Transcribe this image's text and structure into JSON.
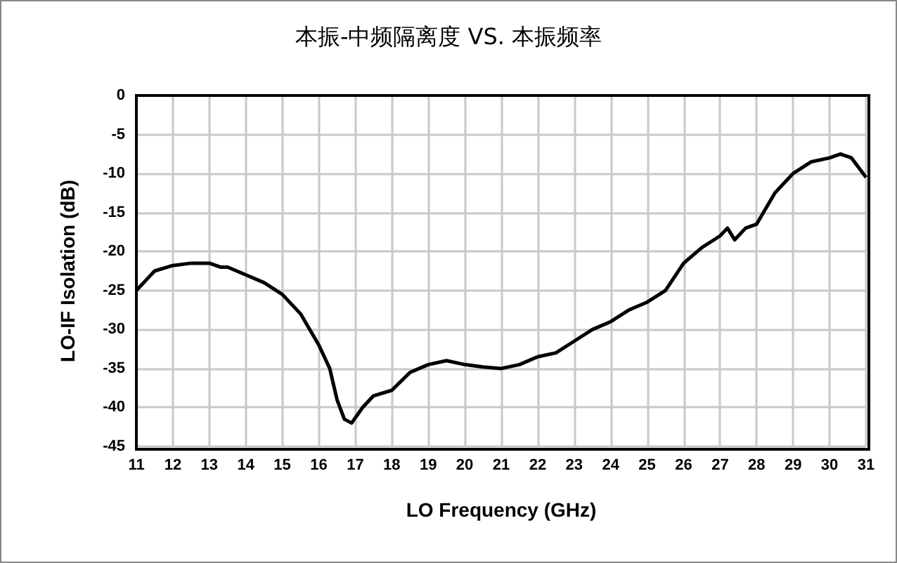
{
  "chart_data": {
    "type": "line",
    "title": "本振-中频隔离度 VS. 本振频率",
    "xlabel": "LO Frequency (GHz)",
    "ylabel": "LO-IF Isolation (dB)",
    "xlim": [
      11,
      31
    ],
    "xticks": [
      11,
      12,
      13,
      14,
      15,
      16,
      17,
      18,
      19,
      20,
      21,
      22,
      23,
      24,
      25,
      26,
      27,
      28,
      29,
      30,
      31
    ],
    "ylim": [
      -45,
      0
    ],
    "yticks": [
      -45,
      -40,
      -35,
      -30,
      -25,
      -20,
      -15,
      -10,
      -5,
      0
    ],
    "grid": true,
    "marker": "none",
    "line_style": "solid",
    "series": [
      {
        "color": "#000000",
        "x": [
          11,
          11.3,
          11.5,
          12,
          12.5,
          13,
          13.3,
          13.5,
          14,
          14.5,
          15,
          15.5,
          16,
          16.3,
          16.5,
          16.7,
          16.9,
          17.2,
          17.5,
          18,
          18.5,
          19,
          19.5,
          20,
          20.5,
          21,
          21.5,
          22,
          22.5,
          23,
          23.5,
          24,
          24.5,
          25,
          25.5,
          26,
          26.5,
          27,
          27.2,
          27.4,
          27.7,
          28,
          28.5,
          29,
          29.5,
          30,
          30.3,
          30.6,
          31
        ],
        "values": [
          -25,
          -23.5,
          -22.5,
          -21.8,
          -21.5,
          -21.5,
          -22,
          -22,
          -23,
          -24,
          -25.5,
          -28,
          -32,
          -35,
          -39,
          -41.5,
          -42,
          -40,
          -38.5,
          -37.8,
          -35.5,
          -34.5,
          -34,
          -34.5,
          -34.8,
          -35,
          -34.5,
          -33.5,
          -33,
          -31.5,
          -30,
          -29,
          -27.5,
          -26.5,
          -25,
          -21.5,
          -19.5,
          -18,
          -17,
          -18.5,
          -17,
          -16.5,
          -12.5,
          -10,
          -8.5,
          -8,
          -7.5,
          -8,
          -10.5
        ]
      }
    ]
  }
}
